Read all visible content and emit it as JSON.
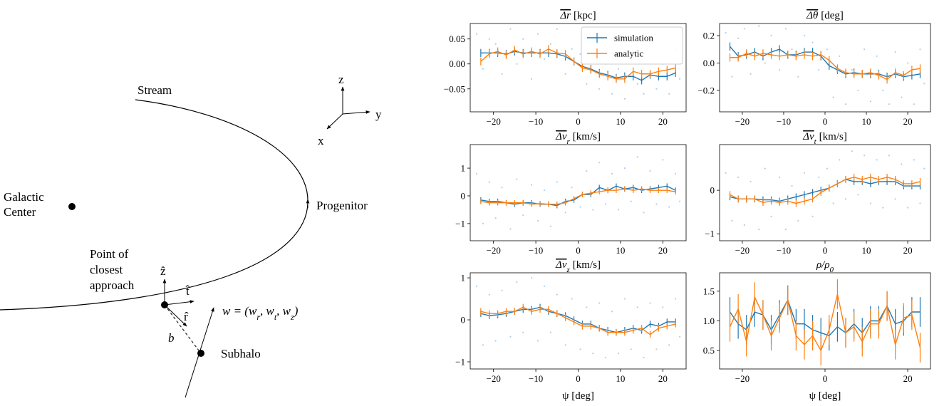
{
  "diagram": {
    "stream": "Stream",
    "galactic_center": [
      "Galactic",
      "Center"
    ],
    "progenitor": "Progenitor",
    "closest_approach": [
      "Point of",
      "closest",
      "approach"
    ],
    "z_hat": "ẑ",
    "t_hat": "t̂",
    "r_hat": "r̂",
    "impact": "b",
    "velocity": [
      "w = (w",
      "r",
      ", w",
      "t",
      ", w",
      "z",
      ")"
    ],
    "subhalo": "Subhalo",
    "axes": {
      "z": "z",
      "y": "y",
      "x": "x"
    }
  },
  "chart_data": [
    {
      "type": "line",
      "title": "Δr",
      "title_overline": true,
      "title_unit": "[kpc]",
      "xlim": [
        -25.5,
        25.5
      ],
      "xticks": [
        {
          "value": -20,
          "label": "−20"
        },
        {
          "value": -10,
          "label": "−10"
        },
        0,
        10,
        20
      ],
      "ylim": [
        -0.096,
        0.081
      ],
      "yticks": [
        {
          "value": -0.05,
          "label": "−0.05"
        },
        {
          "value": 0,
          "label": "0.00"
        },
        0.05
      ],
      "legend": "upper right",
      "x": [
        -23,
        -21,
        -19,
        -17,
        -15,
        -13,
        -11,
        -9,
        -7,
        -5,
        -3,
        -1,
        1,
        3,
        5,
        7,
        9,
        11,
        13,
        15,
        17,
        19,
        21,
        23
      ],
      "points": {
        "color": "#6fa8d6",
        "x": [
          -24,
          -22.5,
          -21,
          -19.5,
          -18,
          -16,
          -14.5,
          -13,
          -11,
          -9.5,
          -8,
          -6.5,
          -5,
          -3,
          -1.5,
          0.5,
          2,
          3.5,
          5,
          6.5,
          8,
          9.5,
          11,
          12.5,
          14,
          15.5,
          17,
          18.5,
          20,
          21.5,
          23,
          24
        ],
        "y": [
          0.06,
          -0.01,
          0.05,
          0.04,
          -0.02,
          0.07,
          0.0,
          0.05,
          -0.03,
          0.06,
          0.01,
          0.04,
          0.07,
          -0.02,
          0.03,
          0.02,
          -0.04,
          0.01,
          -0.05,
          0.0,
          -0.06,
          -0.01,
          -0.07,
          0.01,
          -0.04,
          -0.06,
          0.02,
          -0.05,
          0.0,
          -0.06,
          0.03,
          -0.03
        ]
      },
      "series": [
        {
          "name": "simulation",
          "color": "#1f77b4",
          "error": 0.008,
          "values": [
            0.022,
            0.022,
            0.022,
            0.02,
            0.025,
            0.022,
            0.022,
            0.022,
            0.022,
            0.02,
            0.015,
            0.005,
            -0.005,
            -0.01,
            -0.018,
            -0.022,
            -0.028,
            -0.025,
            -0.025,
            -0.033,
            -0.022,
            -0.025,
            -0.025,
            -0.018
          ]
        },
        {
          "name": "analytic",
          "color": "#ff7f0e",
          "error": 0.008,
          "values": [
            0.005,
            0.02,
            0.025,
            0.018,
            0.028,
            0.02,
            0.025,
            0.02,
            0.03,
            0.022,
            0.02,
            0.005,
            -0.008,
            -0.012,
            -0.02,
            -0.025,
            -0.03,
            -0.03,
            -0.015,
            -0.02,
            -0.02,
            -0.015,
            -0.012,
            -0.008
          ]
        }
      ]
    },
    {
      "type": "line",
      "title": "Δθ",
      "title_overline": true,
      "title_unit": "[deg]",
      "xlim": [
        -25.5,
        25.5
      ],
      "xticks": [
        {
          "value": -20,
          "label": "−20"
        },
        {
          "value": -10,
          "label": "−10"
        },
        0,
        10,
        20
      ],
      "ylim": [
        -0.356,
        0.288
      ],
      "yticks": [
        {
          "value": -0.2,
          "label": "−0.2"
        },
        {
          "value": 0,
          "label": "0.0"
        },
        0.2
      ],
      "x": [
        -23,
        -21,
        -19,
        -17,
        -15,
        -13,
        -11,
        -9,
        -7,
        -5,
        -3,
        -1,
        1,
        3,
        5,
        7,
        9,
        11,
        13,
        15,
        17,
        19,
        21,
        23
      ],
      "points": {
        "color": "#6fa8d6",
        "x": [
          -24,
          -22.5,
          -21,
          -19.5,
          -18,
          -16,
          -14.5,
          -13,
          -11,
          -9.5,
          -8,
          -6.5,
          -5,
          -3,
          -1.5,
          0.5,
          2,
          3.5,
          5,
          6.5,
          8,
          9.5,
          11,
          12.5,
          14,
          15.5,
          17,
          18.5,
          20,
          21.5,
          23,
          24
        ],
        "y": [
          0.22,
          -0.1,
          0.18,
          0.25,
          -0.08,
          0.27,
          0.0,
          0.2,
          -0.05,
          0.25,
          0.1,
          -0.1,
          0.2,
          0.15,
          -0.05,
          0.1,
          -0.25,
          0.05,
          -0.3,
          -0.05,
          -0.2,
          0.1,
          -0.28,
          0.05,
          -0.2,
          -0.3,
          0.08,
          -0.25,
          0.0,
          -0.3,
          0.1,
          -0.15
        ]
      },
      "series": [
        {
          "name": "simulation",
          "color": "#1f77b4",
          "error": 0.03,
          "values": [
            0.12,
            0.05,
            0.06,
            0.08,
            0.05,
            0.08,
            0.1,
            0.06,
            0.06,
            0.08,
            0.08,
            0.05,
            -0.02,
            -0.05,
            -0.08,
            -0.07,
            -0.08,
            -0.08,
            -0.08,
            -0.1,
            -0.08,
            -0.1,
            -0.09,
            -0.08
          ]
        },
        {
          "name": "analytic",
          "color": "#ff7f0e",
          "error": 0.03,
          "values": [
            0.04,
            0.04,
            0.07,
            0.05,
            0.07,
            0.06,
            0.05,
            0.06,
            0.05,
            0.06,
            0.05,
            0.06,
            0.02,
            -0.04,
            -0.07,
            -0.08,
            -0.08,
            -0.07,
            -0.09,
            -0.12,
            -0.07,
            -0.09,
            -0.05,
            -0.04
          ]
        }
      ]
    },
    {
      "type": "line",
      "title": "Δv",
      "title_sub": "r",
      "title_overline": true,
      "title_unit": "[km/s]",
      "xlim": [
        -25.5,
        25.5
      ],
      "xticks": [
        {
          "value": -20,
          "label": "−20"
        },
        {
          "value": -10,
          "label": "−10"
        },
        0,
        10,
        20
      ],
      "ylim": [
        -1.62,
        1.85
      ],
      "yticks": [
        {
          "value": -1,
          "label": "−1"
        },
        0,
        1
      ],
      "x": [
        -23,
        -21,
        -19,
        -17,
        -15,
        -13,
        -11,
        -9,
        -7,
        -5,
        -3,
        -1,
        1,
        3,
        5,
        7,
        9,
        11,
        13,
        15,
        17,
        19,
        21,
        23
      ],
      "points": {
        "color": "#6fa8d6",
        "x": [
          -24,
          -22.5,
          -21,
          -19.5,
          -18,
          -16,
          -14.5,
          -13,
          -11,
          -9.5,
          -8,
          -6.5,
          -5,
          -3,
          -1.5,
          0.5,
          2,
          3.5,
          5,
          6.5,
          8,
          9.5,
          11,
          12.5,
          14,
          15.5,
          17,
          18.5,
          20,
          21.5,
          23,
          24
        ],
        "y": [
          0.8,
          -1.0,
          0.5,
          -0.8,
          0.3,
          -1.2,
          0.6,
          -0.7,
          0.4,
          -0.9,
          0.2,
          -1.1,
          0.5,
          -0.6,
          0.3,
          -0.4,
          0.9,
          -0.5,
          1.2,
          -0.3,
          0.8,
          -0.5,
          1.0,
          -0.2,
          1.4,
          -0.6,
          0.9,
          -0.3,
          1.3,
          -0.4,
          0.8,
          -0.2
        ]
      },
      "series": [
        {
          "name": "simulation",
          "color": "#1f77b4",
          "error": 0.1,
          "values": [
            -0.15,
            -0.2,
            -0.2,
            -0.25,
            -0.3,
            -0.25,
            -0.25,
            -0.3,
            -0.3,
            -0.35,
            -0.2,
            -0.15,
            0.05,
            0.05,
            0.3,
            0.2,
            0.35,
            0.25,
            0.3,
            0.2,
            0.25,
            0.3,
            0.35,
            0.2
          ]
        },
        {
          "name": "analytic",
          "color": "#ff7f0e",
          "error": 0.1,
          "values": [
            -0.2,
            -0.25,
            -0.25,
            -0.25,
            -0.25,
            -0.25,
            -0.3,
            -0.28,
            -0.3,
            -0.3,
            -0.25,
            -0.1,
            0.05,
            0.1,
            0.15,
            0.2,
            0.2,
            0.25,
            0.2,
            0.25,
            0.2,
            0.2,
            0.2,
            0.15
          ]
        }
      ]
    },
    {
      "type": "line",
      "title": "Δv",
      "title_sub": "t",
      "title_overline": true,
      "title_unit": "[km/s]",
      "xlim": [
        -25.5,
        25.5
      ],
      "xticks": [
        {
          "value": -20,
          "label": "−20"
        },
        {
          "value": -10,
          "label": "−10"
        },
        0,
        10,
        20
      ],
      "ylim": [
        -1.16,
        1.05
      ],
      "yticks": [
        {
          "value": -1,
          "label": "−1"
        },
        0
      ],
      "x": [
        -23,
        -21,
        -19,
        -17,
        -15,
        -13,
        -11,
        -9,
        -7,
        -5,
        -3,
        -1,
        1,
        3,
        5,
        7,
        9,
        11,
        13,
        15,
        17,
        19,
        21,
        23
      ],
      "points": {
        "color": "#6fa8d6",
        "x": [
          -24,
          -22.5,
          -21,
          -19.5,
          -18,
          -16,
          -14.5,
          -13,
          -11,
          -9.5,
          -8,
          -6.5,
          -5,
          -3,
          -1.5,
          0.5,
          2,
          3.5,
          5,
          6.5,
          8,
          9.5,
          11,
          12.5,
          14,
          15.5,
          17,
          18.5,
          20,
          21.5,
          23,
          24
        ],
        "y": [
          0.4,
          -0.7,
          0.3,
          -0.8,
          0.2,
          -0.9,
          0.5,
          -0.6,
          0.3,
          -0.9,
          0.1,
          -0.7,
          0.4,
          -0.6,
          0.3,
          0.5,
          -0.3,
          0.7,
          -0.2,
          0.9,
          -0.1,
          0.8,
          -0.3,
          0.7,
          -0.4,
          0.8,
          -0.2,
          0.6,
          -0.4,
          0.7,
          -0.3,
          0.5
        ]
      },
      "series": [
        {
          "name": "simulation",
          "color": "#1f77b4",
          "error": 0.08,
          "values": [
            -0.15,
            -0.2,
            -0.2,
            -0.2,
            -0.22,
            -0.22,
            -0.25,
            -0.2,
            -0.15,
            -0.1,
            -0.05,
            0,
            0.05,
            0.15,
            0.25,
            0.2,
            0.2,
            0.15,
            0.2,
            0.2,
            0.2,
            0.1,
            0.1,
            0.1
          ]
        },
        {
          "name": "analytic",
          "color": "#ff7f0e",
          "error": 0.08,
          "values": [
            -0.1,
            -0.2,
            -0.2,
            -0.2,
            -0.28,
            -0.25,
            -0.28,
            -0.25,
            -0.3,
            -0.25,
            -0.2,
            -0.05,
            0.05,
            0.15,
            0.25,
            0.3,
            0.25,
            0.3,
            0.25,
            0.3,
            0.25,
            0.15,
            0.15,
            0.2
          ]
        }
      ]
    },
    {
      "type": "line",
      "title": "Δv",
      "title_sub": "z",
      "title_overline": true,
      "title_unit": "[km/s]",
      "xlabel": "ψ [deg]",
      "xlim": [
        -25.5,
        25.5
      ],
      "xticks": [
        {
          "value": -20,
          "label": "−20"
        },
        {
          "value": -10,
          "label": "−10"
        },
        0,
        10,
        20
      ],
      "ylim": [
        -1.17,
        1.12
      ],
      "yticks": [
        {
          "value": -1,
          "label": "−1"
        },
        0,
        1
      ],
      "x": [
        -23,
        -21,
        -19,
        -17,
        -15,
        -13,
        -11,
        -9,
        -7,
        -5,
        -3,
        -1,
        1,
        3,
        5,
        7,
        9,
        11,
        13,
        15,
        17,
        19,
        21,
        23
      ],
      "points": {
        "color": "#6fa8d6",
        "x": [
          -24,
          -22.5,
          -21,
          -19.5,
          -18,
          -16,
          -14.5,
          -13,
          -11,
          -9.5,
          -8,
          -6.5,
          -5,
          -3,
          -1.5,
          0.5,
          2,
          3.5,
          5,
          6.5,
          8,
          9.5,
          11,
          12.5,
          14,
          15.5,
          17,
          18.5,
          20,
          21.5,
          23,
          24
        ],
        "y": [
          0.8,
          -0.6,
          0.6,
          -0.5,
          0.7,
          -0.4,
          0.9,
          -0.3,
          1.0,
          -0.5,
          0.8,
          -0.3,
          0.6,
          -0.6,
          0.5,
          -0.7,
          0.3,
          -0.8,
          0.4,
          -0.9,
          0.2,
          -0.8,
          0.5,
          -0.7,
          0.3,
          -0.9,
          0.4,
          -0.7,
          0.3,
          -0.6,
          0.5,
          -0.4
        ]
      },
      "series": [
        {
          "name": "simulation",
          "color": "#1f77b4",
          "error": 0.08,
          "values": [
            0.15,
            0.1,
            0.12,
            0.15,
            0.2,
            0.25,
            0.25,
            0.3,
            0.2,
            0.15,
            0.1,
            0,
            -0.1,
            -0.1,
            -0.2,
            -0.25,
            -0.3,
            -0.25,
            -0.2,
            -0.25,
            -0.1,
            -0.15,
            -0.05,
            -0.05
          ]
        },
        {
          "name": "analytic",
          "color": "#ff7f0e",
          "error": 0.08,
          "values": [
            0.2,
            0.15,
            0.15,
            0.2,
            0.2,
            0.3,
            0.2,
            0.25,
            0.25,
            0.15,
            0.05,
            -0.05,
            -0.15,
            -0.15,
            -0.2,
            -0.3,
            -0.3,
            -0.3,
            -0.25,
            -0.2,
            -0.35,
            -0.2,
            -0.15,
            -0.1
          ]
        }
      ]
    },
    {
      "type": "line",
      "title": "ρ/ρ",
      "title_sub": "0",
      "title_overline": false,
      "xlabel": "ψ [deg]",
      "xlim": [
        -25.5,
        25.5
      ],
      "xticks": [
        {
          "value": -20,
          "label": "−20"
        },
        0,
        20
      ],
      "ylim": [
        0.19,
        1.81
      ],
      "yticks": [
        0.5,
        {
          "value": 1,
          "label": "1.0"
        },
        1.5
      ],
      "x": [
        -23,
        -21,
        -19,
        -17,
        -15,
        -13,
        -11,
        -9,
        -7,
        -5,
        -3,
        -1,
        1,
        3,
        5,
        7,
        9,
        11,
        13,
        15,
        17,
        19,
        21,
        23
      ],
      "series": [
        {
          "name": "simulation",
          "color": "#1f77b4",
          "error": 0.25,
          "values": [
            1.15,
            0.95,
            0.85,
            1.15,
            1.1,
            0.85,
            1.1,
            1.35,
            0.95,
            0.95,
            0.85,
            0.8,
            0.75,
            0.9,
            0.8,
            0.95,
            0.8,
            1.0,
            1.0,
            1.25,
            0.95,
            1.0,
            1.15,
            1.15
          ]
        },
        {
          "name": "analytic",
          "color": "#ff7f0e",
          "error": 0.25,
          "values": [
            0.9,
            1.2,
            0.65,
            1.4,
            1.1,
            0.75,
            1.05,
            1.35,
            0.75,
            0.6,
            0.75,
            0.5,
            0.85,
            1.45,
            0.8,
            0.9,
            0.65,
            0.95,
            0.95,
            1.25,
            0.6,
            1.05,
            1.1,
            0.55
          ]
        }
      ]
    }
  ]
}
